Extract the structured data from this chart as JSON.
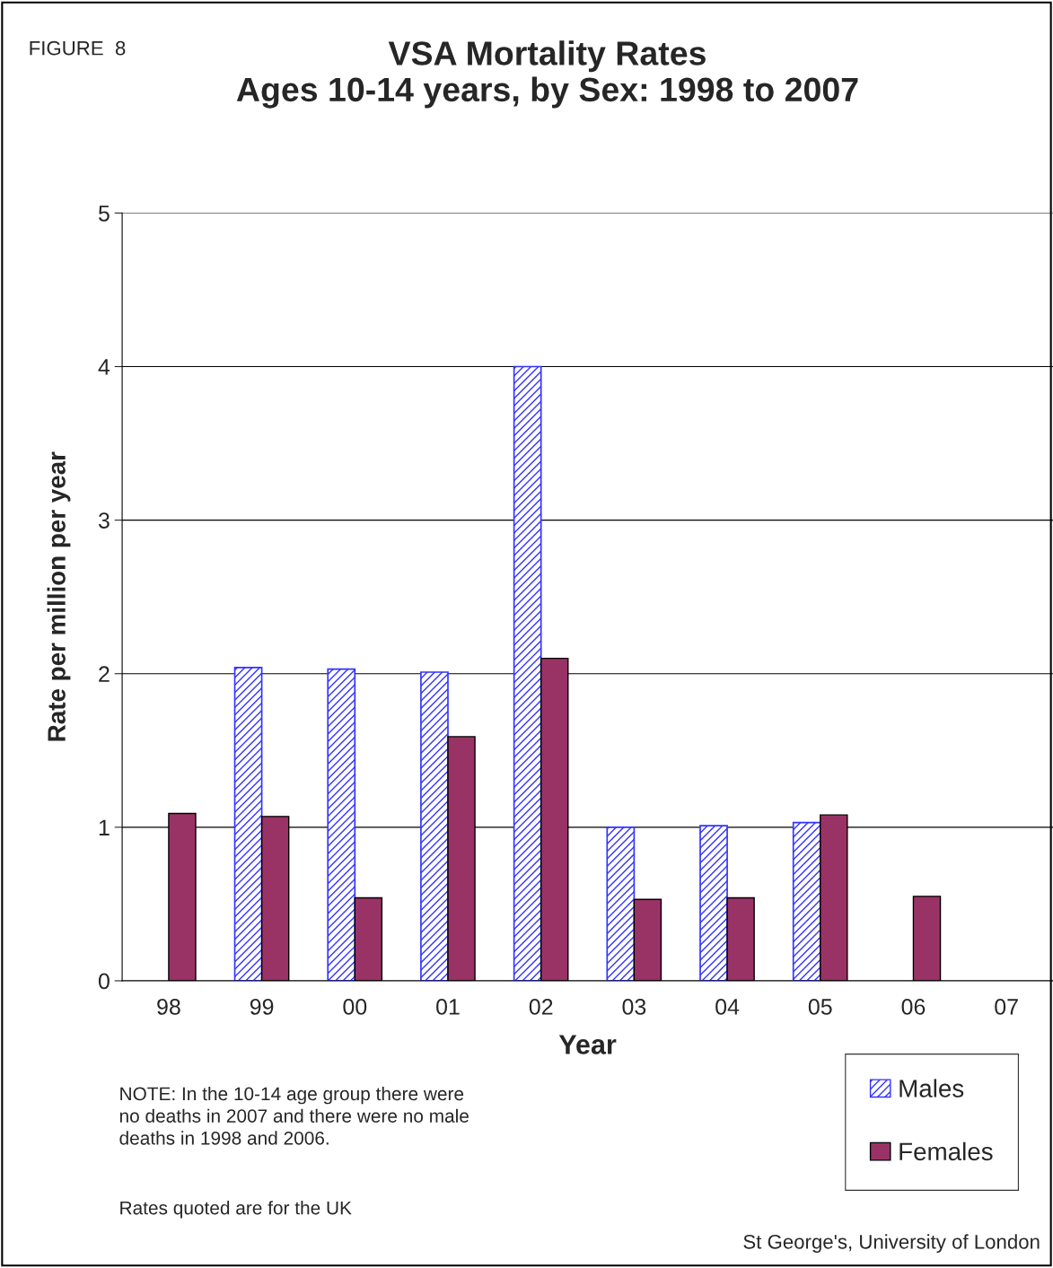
{
  "chart_data": {
    "type": "bar",
    "title": "VSA Mortality Rates\nAges 10-14 years, by Sex: 1998 to 2007",
    "xlabel": "Year",
    "ylabel": "Rate per million per year",
    "categories": [
      "98",
      "99",
      "00",
      "01",
      "02",
      "03",
      "04",
      "05",
      "06",
      "07"
    ],
    "series": [
      {
        "name": "Males",
        "color": "#3333ff",
        "values": [
          null,
          2.04,
          2.03,
          2.01,
          4.0,
          1.0,
          1.01,
          1.03,
          null,
          null
        ]
      },
      {
        "name": "Females",
        "color": "#993366",
        "values": [
          1.09,
          1.07,
          0.54,
          1.59,
          2.1,
          0.53,
          0.54,
          1.08,
          0.55,
          null
        ]
      }
    ],
    "ylim": [
      0,
      5
    ],
    "yticks": [
      0,
      1,
      2,
      3,
      4,
      5
    ],
    "grid": "y",
    "legend": "bottom right",
    "annotations": [
      "FIGURE  8",
      "NOTE: In the 10-14 age group there were\nno deaths in 2007 and there were no male\ndeaths in 1998 and 2006.",
      "Rates quoted are for the UK",
      "St George's, University of London"
    ]
  }
}
